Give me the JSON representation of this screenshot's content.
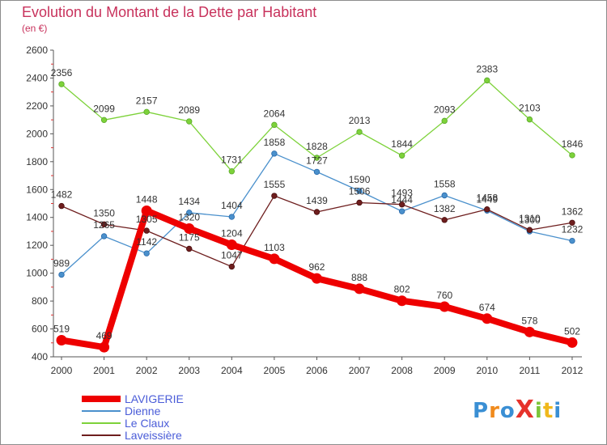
{
  "title": "Evolution du Montant de la Dette par Habitant",
  "subtitle": "(en €)",
  "logo_text": "ProXiti",
  "chart_data": {
    "type": "line",
    "title": "Evolution du Montant de la Dette par Habitant",
    "subtitle": "(en €)",
    "xlabel": "",
    "ylabel": "",
    "categories": [
      "2000",
      "2001",
      "2002",
      "2003",
      "2004",
      "2005",
      "2006",
      "2007",
      "2008",
      "2009",
      "2010",
      "2011",
      "2012"
    ],
    "ylim": [
      400,
      2600
    ],
    "yticks": [
      400,
      600,
      800,
      1000,
      1200,
      1400,
      1600,
      1800,
      2000,
      2200,
      2400,
      2600
    ],
    "grid": false,
    "legend_position": "bottom-left",
    "series": [
      {
        "name": "LAVIGERIE",
        "color": "#ee0000",
        "values": [
          519,
          469,
          1448,
          1320,
          1204,
          1103,
          962,
          888,
          802,
          760,
          674,
          578,
          502
        ]
      },
      {
        "name": "Dienne",
        "color": "#4a90cc",
        "values": [
          989,
          1265,
          1142,
          1434,
          1404,
          1858,
          1727,
          1590,
          1444,
          1558,
          1449,
          1300,
          1232
        ]
      },
      {
        "name": "Le Claux",
        "color": "#7dd23a",
        "values": [
          2356,
          2099,
          2157,
          2089,
          1731,
          2064,
          1828,
          2013,
          1844,
          2093,
          2383,
          2103,
          1846
        ]
      },
      {
        "name": "Laveissière",
        "color": "#6e1e1e",
        "values": [
          1482,
          1350,
          1305,
          1175,
          1047,
          1555,
          1439,
          1506,
          1493,
          1382,
          1458,
          1310,
          1362
        ]
      }
    ]
  }
}
